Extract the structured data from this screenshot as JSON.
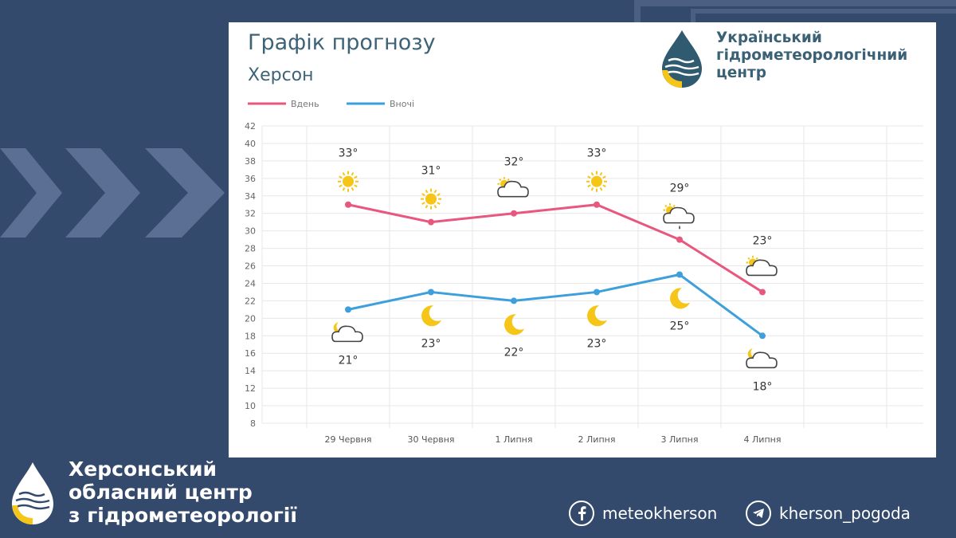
{
  "header": {
    "title": "Графік прогнозу",
    "city": "Херсон"
  },
  "org": {
    "name_lines": [
      "Український",
      "гідрометеорологічний",
      "центр"
    ]
  },
  "footer": {
    "name_lines": [
      "Херсонський",
      "обласний центр",
      "з гідрометеорології"
    ],
    "facebook": {
      "icon": "facebook-icon",
      "handle": "meteokherson"
    },
    "telegram": {
      "icon": "telegram-icon",
      "handle": "kherson_pogoda"
    }
  },
  "colors": {
    "background": "#344a6d",
    "day_line": "#e8577d",
    "night_line": "#3d9fdb",
    "sun": "#f5c518"
  },
  "chart_data": {
    "type": "line",
    "categories": [
      "29 Червня",
      "30 Червня",
      "1 Липня",
      "2 Липня",
      "3 Липня",
      "4 Липня"
    ],
    "ylim": [
      8,
      42
    ],
    "yticks": [
      8,
      10,
      12,
      14,
      16,
      18,
      20,
      22,
      24,
      26,
      28,
      30,
      32,
      34,
      36,
      38,
      40,
      42
    ],
    "grid": true,
    "legend_position": "top-left",
    "temp_suffix": "°",
    "series": [
      {
        "name": "Вдень",
        "color": "#e8577d",
        "values": [
          33,
          31,
          32,
          33,
          29,
          23
        ],
        "icons": [
          "sun-icon",
          "sun-icon",
          "partly-cloudy-icon",
          "sun-icon",
          "rain-cloud-icon",
          "partly-cloudy-icon"
        ]
      },
      {
        "name": "Вночі",
        "color": "#3d9fdb",
        "values": [
          21,
          23,
          22,
          23,
          25,
          18
        ],
        "icons": [
          "cloud-night-icon",
          "moon-icon",
          "moon-icon",
          "moon-icon",
          "moon-icon",
          "cloud-night-icon"
        ]
      }
    ]
  }
}
